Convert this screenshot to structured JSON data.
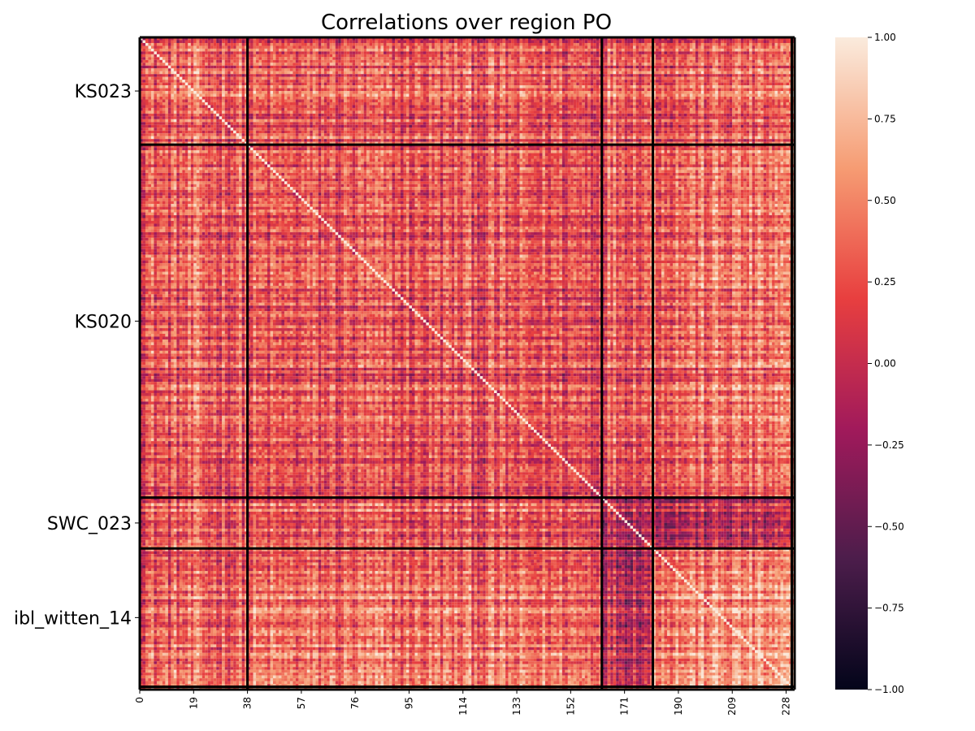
{
  "chart_data": {
    "type": "heatmap",
    "title": "Correlations over region PO",
    "n": 231,
    "x_ticks": [
      0,
      19,
      38,
      57,
      76,
      95,
      114,
      133,
      152,
      171,
      190,
      209,
      228
    ],
    "groups": [
      {
        "label": "KS023",
        "start": 0,
        "end": 38
      },
      {
        "label": "KS020",
        "start": 38,
        "end": 163
      },
      {
        "label": "SWC_023",
        "start": 163,
        "end": 181
      },
      {
        "label": "ibl_witten_14",
        "start": 181,
        "end": 230
      },
      {
        "label": "",
        "start": 230,
        "end": 231
      }
    ],
    "boundaries": [
      38,
      163,
      181,
      230
    ],
    "colorbar": {
      "vmin": -1.0,
      "vmax": 1.0,
      "ticks": [
        1.0,
        0.75,
        0.5,
        0.25,
        0.0,
        -0.25,
        -0.5,
        -0.75,
        -1.0
      ],
      "tick_labels": [
        "1.00",
        "0.75",
        "0.50",
        "0.25",
        "0.00",
        "−0.25",
        "−0.50",
        "−0.75",
        "−1.00"
      ],
      "colormap": "rocket",
      "stops": [
        "#03051a",
        "#4c1d4b",
        "#a11a5b",
        "#e83f3f",
        "#f69c73",
        "#faebdd"
      ]
    },
    "block_mean_correlation": [
      [
        0.3,
        0.25,
        0.35,
        0.3,
        0.3
      ],
      [
        0.25,
        0.2,
        0.3,
        0.35,
        0.3
      ],
      [
        0.35,
        0.3,
        0.05,
        0.0,
        0.3
      ],
      [
        0.3,
        0.35,
        0.0,
        0.5,
        0.3
      ],
      [
        0.3,
        0.3,
        0.3,
        0.3,
        0.3
      ]
    ]
  }
}
